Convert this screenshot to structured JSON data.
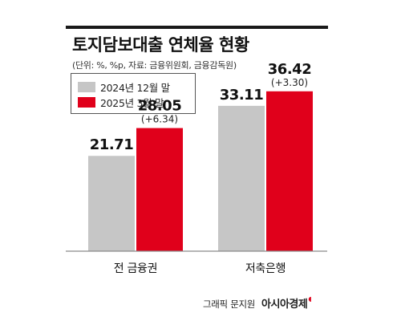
{
  "title": "토지담보대출 연체율 현황",
  "subtitle": "(단위: %, %p, 자료: 금융위원회, 금융감독원)",
  "credit": {
    "graphic": "그래픽 문지원",
    "brand": "아시아경제"
  },
  "colors": {
    "series_2024": "#c6c6c6",
    "series_2025": "#e0001b",
    "axis": "#8a8a8a",
    "text": "#111111"
  },
  "chart_data": {
    "type": "bar",
    "categories": [
      "전 금융권",
      "저축은행"
    ],
    "series": [
      {
        "name": "2024년 12월 말",
        "values": [
          21.71,
          33.11
        ],
        "labels": [
          "21.71",
          "33.11"
        ],
        "changes": [
          "",
          ""
        ]
      },
      {
        "name": "2025년 3월 말",
        "values": [
          28.05,
          36.42
        ],
        "labels": [
          "28.05",
          "36.42"
        ],
        "changes": [
          "(+6.34)",
          "(+3.30)"
        ]
      }
    ],
    "ylim": [
      0,
      40
    ],
    "legend_position": "top-left",
    "grid": false
  }
}
